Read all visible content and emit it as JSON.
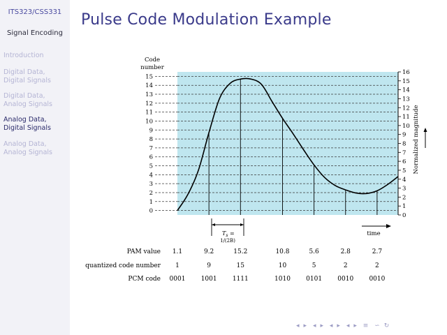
{
  "sidebar": {
    "course": "ITS323/CSS331",
    "section": "Signal Encoding",
    "items": [
      {
        "line1": "Introduction",
        "line2": ""
      },
      {
        "line1": "Digital Data,",
        "line2": "Digital Signals"
      },
      {
        "line1": "Digital Data,",
        "line2": "Analog Signals"
      },
      {
        "line1": "Analog Data,",
        "line2": "Digital Signals"
      },
      {
        "line1": "Analog Data,",
        "line2": "Analog Signals"
      }
    ]
  },
  "slide": {
    "title": "Pulse Code Modulation Example"
  },
  "figure": {
    "code_label_line1": "Code",
    "code_label_line2": "number",
    "right_axis_label": "Normalized magnitude",
    "ts_label": "T",
    "ts_sub": "s",
    "ts_eq": " =",
    "ts_formula": "1/(2B)",
    "time_label": "time",
    "row_labels": [
      "PAM value",
      "quantized code number",
      "PCM code"
    ]
  },
  "chart_data": {
    "type": "line",
    "left_ticks": [
      "0",
      "1",
      "2",
      "3",
      "4",
      "5",
      "6",
      "7",
      "8",
      "9",
      "10",
      "11",
      "12",
      "13",
      "14",
      "15"
    ],
    "right_ticks": [
      "0",
      "1",
      "2",
      "3",
      "4",
      "5",
      "6",
      "7",
      "8",
      "9",
      "10",
      "11",
      "12",
      "13",
      "14",
      "15",
      "16"
    ],
    "ylim": [
      0,
      16
    ],
    "signal": [
      {
        "t": 0.0,
        "v": 0.5
      },
      {
        "t": 0.5,
        "v": 2.3
      },
      {
        "t": 1.0,
        "v": 5.0
      },
      {
        "t": 1.5,
        "v": 9.2
      },
      {
        "t": 2.0,
        "v": 13.0
      },
      {
        "t": 2.5,
        "v": 14.7
      },
      {
        "t": 3.0,
        "v": 15.2
      },
      {
        "t": 3.5,
        "v": 15.2
      },
      {
        "t": 4.0,
        "v": 14.6
      },
      {
        "t": 4.5,
        "v": 12.7
      },
      {
        "t": 5.0,
        "v": 10.8
      },
      {
        "t": 5.5,
        "v": 9.1
      },
      {
        "t": 6.0,
        "v": 7.3
      },
      {
        "t": 6.5,
        "v": 5.6
      },
      {
        "t": 7.0,
        "v": 4.2
      },
      {
        "t": 7.5,
        "v": 3.3
      },
      {
        "t": 8.0,
        "v": 2.8
      },
      {
        "t": 8.5,
        "v": 2.45
      },
      {
        "t": 9.0,
        "v": 2.4
      },
      {
        "t": 9.5,
        "v": 2.7
      },
      {
        "t": 10.0,
        "v": 3.4
      },
      {
        "t": 10.5,
        "v": 4.3
      }
    ],
    "samples": [
      {
        "t": 1.5,
        "pam": "9.2",
        "code": "9",
        "pcm": "1001"
      },
      {
        "t": 3.0,
        "pam": "15.2",
        "code": "15",
        "pcm": "1111"
      },
      {
        "t": 5.0,
        "pam": "10.8",
        "code": "10",
        "pcm": "1010"
      },
      {
        "t": 6.5,
        "pam": "5.6",
        "code": "5",
        "pcm": "0101"
      },
      {
        "t": 8.0,
        "pam": "2.8",
        "code": "2",
        "pcm": "0010"
      },
      {
        "t": 9.5,
        "pam": "2.7",
        "code": "2",
        "pcm": "0010"
      }
    ],
    "first_column": {
      "pam": "1.1",
      "code": "1",
      "pcm": "0001"
    },
    "fill_color": "#bfe6ef",
    "line_color": "#000000"
  },
  "nav": {
    "symbols": [
      "◂",
      "▸",
      "◂",
      "▸",
      "◂",
      "▸",
      "◂",
      "▸",
      "≡",
      "∽",
      "↻"
    ]
  }
}
